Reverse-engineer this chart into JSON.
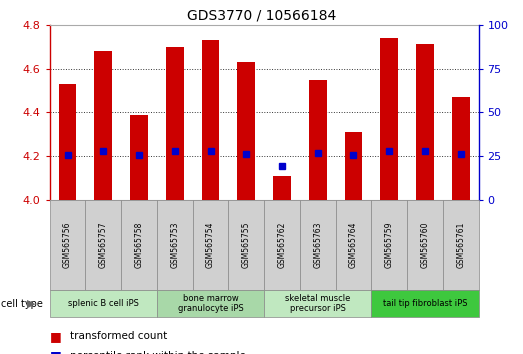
{
  "title": "GDS3770 / 10566184",
  "samples": [
    "GSM565756",
    "GSM565757",
    "GSM565758",
    "GSM565753",
    "GSM565754",
    "GSM565755",
    "GSM565762",
    "GSM565763",
    "GSM565764",
    "GSM565759",
    "GSM565760",
    "GSM565761"
  ],
  "transformed_count": [
    4.53,
    4.68,
    4.39,
    4.7,
    4.73,
    4.63,
    4.11,
    4.55,
    4.31,
    4.74,
    4.71,
    4.47
  ],
  "percentile_rank_y": [
    4.205,
    4.225,
    4.205,
    4.225,
    4.225,
    4.21,
    4.155,
    4.215,
    4.205,
    4.225,
    4.225,
    4.21
  ],
  "cell_types": [
    {
      "label": "splenic B cell iPS",
      "start": 0,
      "end": 3,
      "color": "#c0e8c0"
    },
    {
      "label": "bone marrow\ngranulocyte iPS",
      "start": 3,
      "end": 6,
      "color": "#a0d8a0"
    },
    {
      "label": "skeletal muscle\nprecursor iPS",
      "start": 6,
      "end": 9,
      "color": "#c0e8c0"
    },
    {
      "label": "tail tip fibroblast iPS",
      "start": 9,
      "end": 12,
      "color": "#40c040"
    }
  ],
  "ylim": [
    4.0,
    4.8
  ],
  "yticks": [
    4.0,
    4.2,
    4.4,
    4.6,
    4.8
  ],
  "y2ticks": [
    0,
    25,
    50,
    75,
    100
  ],
  "bar_color": "#cc0000",
  "marker_color": "#0000cc",
  "bar_width": 0.5
}
